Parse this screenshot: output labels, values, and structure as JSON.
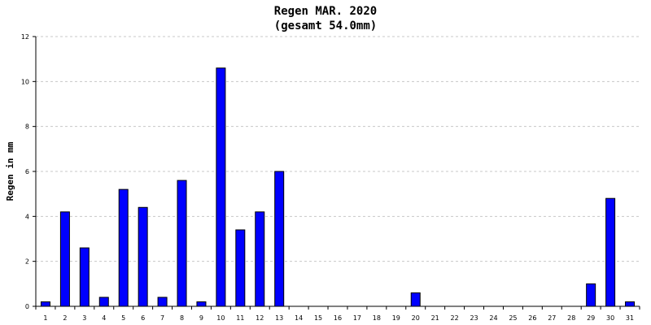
{
  "chart_data": {
    "type": "bar",
    "title": "Regen MAR. 2020",
    "subtitle": "(gesamt 54.0mm)",
    "xlabel": "",
    "ylabel": "Regen in mm",
    "ylim": [
      0,
      12
    ],
    "yticks": [
      "0",
      "2",
      "4",
      "6",
      "8",
      "10",
      "12"
    ],
    "grid": true,
    "categories": [
      "1",
      "2",
      "3",
      "4",
      "5",
      "6",
      "7",
      "8",
      "9",
      "10",
      "11",
      "12",
      "13",
      "14",
      "15",
      "16",
      "17",
      "18",
      "19",
      "20",
      "21",
      "22",
      "23",
      "24",
      "25",
      "26",
      "27",
      "28",
      "29",
      "30",
      "31"
    ],
    "values": [
      0.2,
      4.2,
      2.6,
      0.4,
      5.2,
      4.4,
      0.4,
      5.6,
      0.2,
      10.6,
      3.4,
      4.2,
      6.0,
      0,
      0,
      0,
      0,
      0,
      0,
      0.6,
      0,
      0,
      0,
      0,
      0,
      0,
      0,
      0,
      1.0,
      4.8,
      0.2
    ],
    "bar_color": "#0000ff",
    "bar_edge_color": "#000000"
  }
}
